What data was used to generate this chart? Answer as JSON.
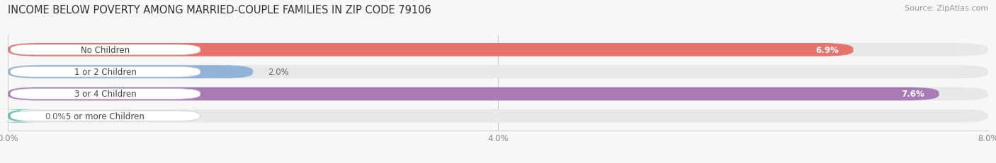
{
  "title": "INCOME BELOW POVERTY AMONG MARRIED-COUPLE FAMILIES IN ZIP CODE 79106",
  "source": "Source: ZipAtlas.com",
  "categories": [
    "No Children",
    "1 or 2 Children",
    "3 or 4 Children",
    "5 or more Children"
  ],
  "values": [
    6.9,
    2.0,
    7.6,
    0.0
  ],
  "bar_colors": [
    "#E8736C",
    "#91B3D7",
    "#A97BB5",
    "#5BBFB5"
  ],
  "value_inside": [
    true,
    false,
    true,
    false
  ],
  "xlim": [
    0,
    8.0
  ],
  "xticks": [
    0.0,
    4.0,
    8.0
  ],
  "xtick_labels": [
    "0.0%",
    "4.0%",
    "8.0%"
  ],
  "bg_color": "#f7f7f7",
  "bar_bg_color": "#e8e8e8",
  "title_fontsize": 10.5,
  "source_fontsize": 8,
  "label_fontsize": 8.5,
  "value_fontsize": 8.5
}
